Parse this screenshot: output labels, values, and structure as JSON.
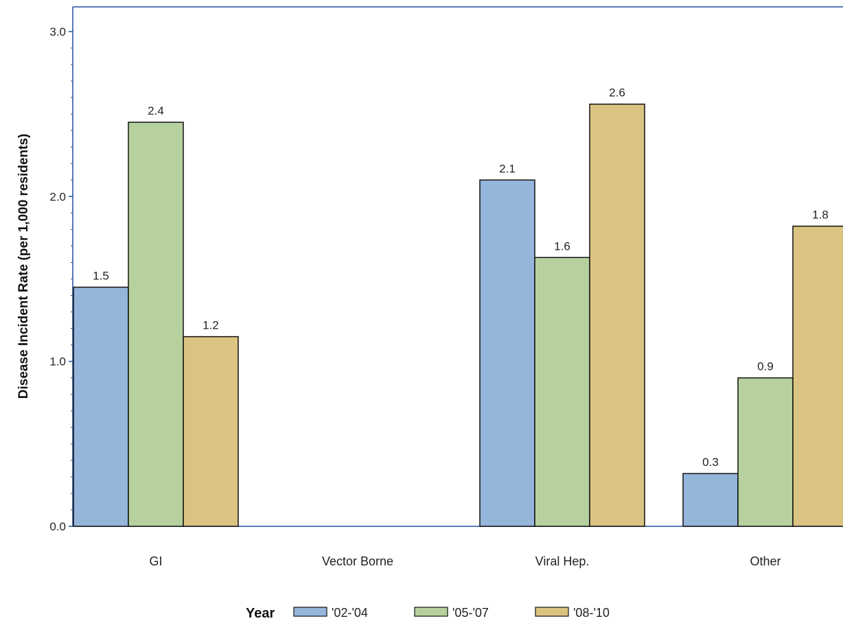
{
  "chart_data": {
    "type": "bar",
    "title": "",
    "xlabel": "",
    "ylabel": "Disease Incident Rate (per 1,000 residents)",
    "categories": [
      "GI",
      "Vector Borne",
      "Viral Hep.",
      "Other"
    ],
    "series": [
      {
        "name": "'02-'04",
        "color": "#95b5da",
        "values": [
          1.45,
          0.0,
          2.1,
          0.32
        ],
        "labels": [
          "1.5",
          null,
          "2.1",
          "0.3"
        ]
      },
      {
        "name": "'05-'07",
        "color": "#b6d19e",
        "values": [
          2.45,
          0.0,
          1.63,
          0.9
        ],
        "labels": [
          "2.4",
          null,
          "1.6",
          "0.9"
        ]
      },
      {
        "name": "'08-'10",
        "color": "#dbc381",
        "values": [
          1.15,
          0.0,
          2.56,
          1.82
        ],
        "labels": [
          "1.2",
          null,
          "2.6",
          "1.8"
        ]
      }
    ],
    "ylim": [
      0,
      3.0
    ],
    "yticks": [
      0.0,
      1.0,
      2.0,
      3.0
    ],
    "ytick_labels": [
      "0.0",
      "1.0",
      "2.0",
      "3.0"
    ],
    "grid": false,
    "legend": {
      "title": "Year",
      "placement": "bottom"
    },
    "colors": {
      "axis": "#1f4fa3",
      "bar_outline": "#111111"
    }
  }
}
